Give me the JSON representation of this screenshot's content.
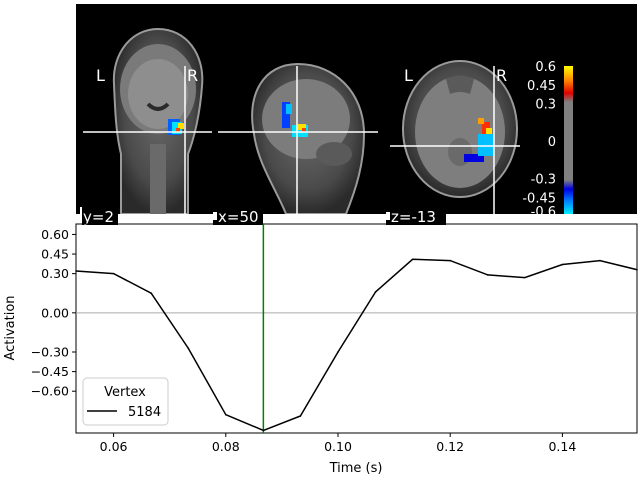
{
  "brain_viewer": {
    "orientation_labels": {
      "left": "L",
      "right": "R"
    },
    "slices": [
      {
        "view": "coronal",
        "coord_label": "y=2"
      },
      {
        "view": "sagittal",
        "coord_label": "x=50"
      },
      {
        "view": "axial",
        "coord_label": "z=-13"
      }
    ],
    "colorbar": {
      "tick_labels": [
        "0.6",
        "0.45",
        "0.3",
        "0",
        "-0.3",
        "-0.45",
        "-0.6"
      ],
      "tick_values": [
        0.6,
        0.45,
        0.3,
        0,
        -0.3,
        -0.45,
        -0.6
      ],
      "colormap": "blue-cyan-gray-red-yellow (diverging)"
    }
  },
  "chart_data": {
    "type": "line",
    "title": "",
    "xlabel": "Time (s)",
    "ylabel": "Activation",
    "xlim": [
      0.0533,
      0.1533
    ],
    "ylim": [
      -0.92,
      0.68
    ],
    "x_tick_values": [
      0.06,
      0.08,
      0.1,
      0.12,
      0.14
    ],
    "x_tick_labels": [
      "0.06",
      "0.08",
      "0.10",
      "0.12",
      "0.14"
    ],
    "y_tick_values": [
      0.6,
      0.45,
      0.3,
      0.0,
      -0.3,
      -0.45,
      -0.6
    ],
    "y_tick_labels": [
      "0.60",
      "0.45",
      "0.30",
      "0.00",
      "−0.30",
      "−0.45",
      "−0.60"
    ],
    "zero_line": true,
    "grid": false,
    "cursor_time": 0.0867,
    "cursor_color": "#007f00",
    "legend": {
      "title": "Vertex",
      "position": "lower-left"
    },
    "series": [
      {
        "name": "5184",
        "color": "#000000",
        "x": [
          0.0533,
          0.06,
          0.0667,
          0.0733,
          0.08,
          0.0867,
          0.0933,
          0.1,
          0.1067,
          0.1133,
          0.12,
          0.1267,
          0.1333,
          0.14,
          0.1467,
          0.1533
        ],
        "y": [
          0.32,
          0.3,
          0.15,
          -0.27,
          -0.78,
          -0.9,
          -0.79,
          -0.3,
          0.16,
          0.41,
          0.4,
          0.29,
          0.27,
          0.37,
          0.4,
          0.33
        ]
      }
    ]
  }
}
